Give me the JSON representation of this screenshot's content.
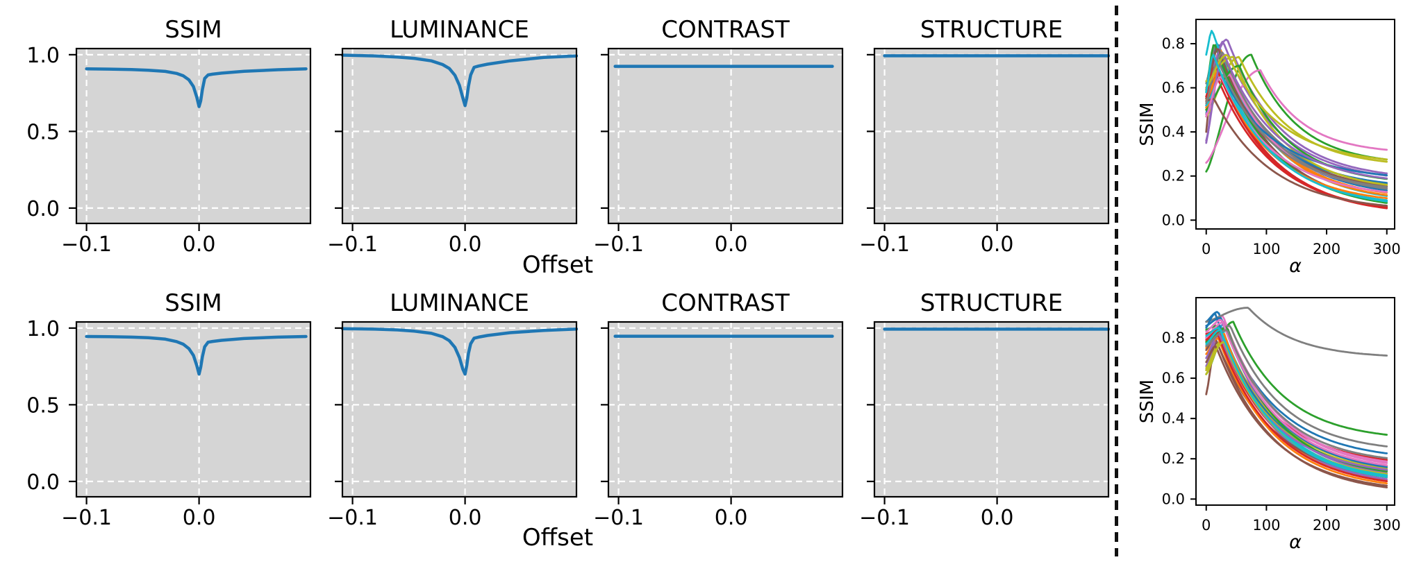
{
  "figure": {
    "offset_label": "Offset",
    "text_color": "#000000",
    "panel_bg": "#d5d5d5",
    "grid_color": "#ffffff",
    "line_blue": "#1f77b4",
    "divider_color": "#111111",
    "palette": [
      "#1f77b4",
      "#ff7f0e",
      "#2ca02c",
      "#d62728",
      "#9467bd",
      "#8c564b",
      "#e377c2",
      "#7f7f7f",
      "#bcbd22",
      "#17becf"
    ]
  },
  "chart_data": [
    {
      "id": "r1-ssim",
      "type": "line",
      "panel": {
        "group": "left",
        "row": 0,
        "col": 0
      },
      "title": "SSIM",
      "grid": true,
      "bg": "panel",
      "show_ytick_labels": true,
      "xlim": [
        -0.109,
        0.099
      ],
      "ylim": [
        -0.1,
        1.04
      ],
      "xticks": [
        -0.1,
        0
      ],
      "xtick_labels": [
        "−0.1",
        "0.0"
      ],
      "yticks": [
        0,
        0.5,
        1
      ],
      "ytick_labels": [
        "0.0",
        "0.5",
        "1.0"
      ],
      "x": [
        -0.1,
        -0.08,
        -0.06,
        -0.045,
        -0.03,
        -0.02,
        -0.014,
        -0.009,
        -0.005,
        -0.002,
        0,
        0.0015,
        0.003,
        0.005,
        0.008,
        0.012,
        0.02,
        0.04,
        0.07,
        0.095
      ],
      "y": [
        0.908,
        0.906,
        0.903,
        0.899,
        0.891,
        0.878,
        0.862,
        0.836,
        0.792,
        0.722,
        0.662,
        0.7,
        0.775,
        0.845,
        0.868,
        0.873,
        0.88,
        0.892,
        0.902,
        0.908
      ]
    },
    {
      "id": "r1-luminance",
      "type": "line",
      "panel": {
        "group": "left",
        "row": 0,
        "col": 1
      },
      "title": "LUMINANCE",
      "grid": true,
      "bg": "panel",
      "show_ytick_labels": false,
      "xlim": [
        -0.109,
        0.099
      ],
      "ylim": [
        -0.1,
        1.04
      ],
      "xticks": [
        -0.1,
        0
      ],
      "xtick_labels": [
        "−0.1",
        "0.0"
      ],
      "yticks": [
        0,
        0.5,
        1
      ],
      "ytick_labels": [
        "0.0",
        "0.5",
        "1.0"
      ],
      "x": [
        -0.109,
        -0.08,
        -0.06,
        -0.045,
        -0.03,
        -0.02,
        -0.014,
        -0.009,
        -0.005,
        -0.002,
        0,
        0.0015,
        0.003,
        0.005,
        0.008,
        0.012,
        0.02,
        0.04,
        0.07,
        0.099
      ],
      "y": [
        0.997,
        0.992,
        0.985,
        0.976,
        0.96,
        0.936,
        0.91,
        0.866,
        0.8,
        0.718,
        0.668,
        0.715,
        0.795,
        0.868,
        0.918,
        0.926,
        0.938,
        0.96,
        0.982,
        0.992
      ]
    },
    {
      "id": "r1-contrast",
      "type": "line",
      "panel": {
        "group": "left",
        "row": 0,
        "col": 2
      },
      "title": "CONTRAST",
      "grid": true,
      "bg": "panel",
      "show_ytick_labels": false,
      "xlim": [
        -0.109,
        0.099
      ],
      "ylim": [
        -0.1,
        1.04
      ],
      "xticks": [
        -0.1,
        0
      ],
      "xtick_labels": [
        "−0.1",
        "0.0"
      ],
      "yticks": [
        0,
        0.5,
        1
      ],
      "ytick_labels": [
        "0.0",
        "0.5",
        "1.0"
      ],
      "x": [
        -0.103,
        0.09
      ],
      "y": [
        0.924,
        0.924
      ]
    },
    {
      "id": "r1-structure",
      "type": "line",
      "panel": {
        "group": "left",
        "row": 0,
        "col": 3
      },
      "title": "STRUCTURE",
      "grid": true,
      "bg": "panel",
      "show_ytick_labels": false,
      "xlim": [
        -0.109,
        0.099
      ],
      "ylim": [
        -0.1,
        1.04
      ],
      "xticks": [
        -0.1,
        0
      ],
      "xtick_labels": [
        "−0.1",
        "0.0"
      ],
      "yticks": [
        0,
        0.5,
        1
      ],
      "ytick_labels": [
        "0.0",
        "0.5",
        "1.0"
      ],
      "x": [
        -0.1,
        0.099
      ],
      "y": [
        0.993,
        0.993
      ]
    },
    {
      "id": "r2-ssim",
      "type": "line",
      "panel": {
        "group": "left",
        "row": 1,
        "col": 0
      },
      "title": "SSIM",
      "grid": true,
      "bg": "panel",
      "show_ytick_labels": true,
      "xlim": [
        -0.109,
        0.099
      ],
      "ylim": [
        -0.1,
        1.04
      ],
      "xticks": [
        -0.1,
        0
      ],
      "xtick_labels": [
        "−0.1",
        "0.0"
      ],
      "yticks": [
        0,
        0.5,
        1
      ],
      "ytick_labels": [
        "0.0",
        "0.5",
        "1.0"
      ],
      "x": [
        -0.1,
        -0.08,
        -0.06,
        -0.045,
        -0.03,
        -0.02,
        -0.014,
        -0.009,
        -0.005,
        -0.002,
        0,
        0.0015,
        0.003,
        0.005,
        0.008,
        0.012,
        0.02,
        0.04,
        0.07,
        0.095
      ],
      "y": [
        0.945,
        0.944,
        0.941,
        0.937,
        0.928,
        0.912,
        0.895,
        0.866,
        0.822,
        0.755,
        0.7,
        0.745,
        0.815,
        0.878,
        0.908,
        0.913,
        0.92,
        0.932,
        0.941,
        0.945
      ]
    },
    {
      "id": "r2-luminance",
      "type": "line",
      "panel": {
        "group": "left",
        "row": 1,
        "col": 1
      },
      "title": "LUMINANCE",
      "grid": true,
      "bg": "panel",
      "show_ytick_labels": false,
      "xlim": [
        -0.109,
        0.099
      ],
      "ylim": [
        -0.1,
        1.04
      ],
      "xticks": [
        -0.1,
        0
      ],
      "xtick_labels": [
        "−0.1",
        "0.0"
      ],
      "yticks": [
        0,
        0.5,
        1
      ],
      "ytick_labels": [
        "0.0",
        "0.5",
        "1.0"
      ],
      "x": [
        -0.109,
        -0.08,
        -0.06,
        -0.045,
        -0.03,
        -0.02,
        -0.014,
        -0.009,
        -0.005,
        -0.002,
        0,
        0.0015,
        0.003,
        0.005,
        0.008,
        0.012,
        0.02,
        0.04,
        0.07,
        0.099
      ],
      "y": [
        0.996,
        0.993,
        0.988,
        0.98,
        0.966,
        0.944,
        0.918,
        0.874,
        0.808,
        0.732,
        0.7,
        0.755,
        0.835,
        0.898,
        0.934,
        0.941,
        0.952,
        0.97,
        0.985,
        0.994
      ]
    },
    {
      "id": "r2-contrast",
      "type": "line",
      "panel": {
        "group": "left",
        "row": 1,
        "col": 2
      },
      "title": "CONTRAST",
      "grid": true,
      "bg": "panel",
      "show_ytick_labels": false,
      "xlim": [
        -0.109,
        0.099
      ],
      "ylim": [
        -0.1,
        1.04
      ],
      "xticks": [
        -0.1,
        0
      ],
      "xtick_labels": [
        "−0.1",
        "0.0"
      ],
      "yticks": [
        0,
        0.5,
        1
      ],
      "ytick_labels": [
        "0.0",
        "0.5",
        "1.0"
      ],
      "x": [
        -0.103,
        0.09
      ],
      "y": [
        0.947,
        0.947
      ]
    },
    {
      "id": "r2-structure",
      "type": "line",
      "panel": {
        "group": "left",
        "row": 1,
        "col": 3
      },
      "title": "STRUCTURE",
      "grid": true,
      "bg": "panel",
      "show_ytick_labels": false,
      "xlim": [
        -0.109,
        0.099
      ],
      "ylim": [
        -0.1,
        1.04
      ],
      "xticks": [
        -0.1,
        0
      ],
      "xtick_labels": [
        "−0.1",
        "0.0"
      ],
      "yticks": [
        0,
        0.5,
        1
      ],
      "ytick_labels": [
        "0.0",
        "0.5",
        "1.0"
      ],
      "x": [
        -0.1,
        0.099
      ],
      "y": [
        0.993,
        0.993
      ]
    },
    {
      "id": "alpha-top",
      "type": "line-family",
      "panel": {
        "group": "right",
        "row": 0
      },
      "grid": false,
      "bg": "white",
      "show_ytick_labels": true,
      "ylabel": "SSIM",
      "xlabel": "α",
      "xlim": [
        -17,
        313
      ],
      "ylim": [
        -0.04,
        0.91
      ],
      "xticks": [
        0,
        100,
        200,
        300
      ],
      "xtick_labels": [
        "0",
        "100",
        "200",
        "300"
      ],
      "yticks": [
        0,
        0.2,
        0.4,
        0.6,
        0.8
      ],
      "ytick_labels": [
        "0.0",
        "0.2",
        "0.4",
        "0.6",
        "0.8"
      ],
      "curves_format": [
        "color_index",
        "y_at_0",
        "peak_alpha",
        "peak_value",
        "y_at_300"
      ],
      "curves": [
        [
          0,
          0.48,
          20,
          0.8,
          0.1
        ],
        [
          1,
          0.51,
          25,
          0.77,
          0.09
        ],
        [
          2,
          0.22,
          75,
          0.75,
          0.25
        ],
        [
          3,
          0.59,
          12,
          0.74,
          0.02
        ],
        [
          4,
          0.35,
          28,
          0.81,
          0.17
        ],
        [
          5,
          0.4,
          15,
          0.79,
          0.12
        ],
        [
          6,
          0.26,
          90,
          0.68,
          0.3
        ],
        [
          7,
          0.62,
          18,
          0.8,
          0.13
        ],
        [
          8,
          0.47,
          55,
          0.74,
          0.24
        ],
        [
          9,
          0.75,
          10,
          0.86,
          0.07
        ],
        [
          0,
          0.55,
          22,
          0.72,
          0.14
        ],
        [
          1,
          0.5,
          30,
          0.75,
          0.08
        ],
        [
          2,
          0.58,
          14,
          0.8,
          0.04
        ],
        [
          3,
          0.52,
          18,
          0.65,
          0.03
        ],
        [
          4,
          0.6,
          35,
          0.82,
          0.18
        ],
        [
          5,
          0.55,
          20,
          0.78,
          0.05
        ],
        [
          6,
          0.48,
          40,
          0.66,
          0.12
        ],
        [
          7,
          0.56,
          28,
          0.76,
          0.11
        ],
        [
          8,
          0.63,
          45,
          0.74,
          0.13
        ],
        [
          9,
          0.52,
          30,
          0.66,
          0.06
        ],
        [
          0,
          0.58,
          25,
          0.66,
          0.18
        ],
        [
          1,
          0.54,
          22,
          0.66,
          0.07
        ],
        [
          2,
          0.5,
          55,
          0.7,
          0.16
        ],
        [
          3,
          0.56,
          16,
          0.7,
          0.02
        ],
        [
          4,
          0.36,
          30,
          0.75,
          0.16
        ],
        [
          5,
          0.54,
          13,
          0.55,
          0.04
        ],
        [
          6,
          0.47,
          25,
          0.65,
          0.1
        ],
        [
          7,
          0.53,
          20,
          0.72,
          0.12
        ],
        [
          8,
          0.6,
          35,
          0.75,
          0.25
        ],
        [
          9,
          0.58,
          12,
          0.75,
          0.05
        ]
      ]
    },
    {
      "id": "alpha-bottom",
      "type": "line-family",
      "panel": {
        "group": "right",
        "row": 1
      },
      "grid": false,
      "bg": "white",
      "show_ytick_labels": true,
      "ylabel": "SSIM",
      "xlabel": "α",
      "xlim": [
        -17,
        313
      ],
      "ylim": [
        -0.03,
        1.0
      ],
      "xticks": [
        0,
        100,
        200,
        300
      ],
      "xtick_labels": [
        "0",
        "100",
        "200",
        "300"
      ],
      "yticks": [
        0,
        0.2,
        0.4,
        0.6,
        0.8
      ],
      "ytick_labels": [
        "0.0",
        "0.2",
        "0.4",
        "0.6",
        "0.8"
      ],
      "curves_format": [
        "color_index",
        "y_at_0",
        "peak_alpha",
        "peak_value",
        "y_at_300"
      ],
      "curves": [
        [
          0,
          0.88,
          20,
          0.93,
          0.19
        ],
        [
          1,
          0.75,
          25,
          0.84,
          0.05
        ],
        [
          2,
          0.62,
          45,
          0.88,
          0.29
        ],
        [
          3,
          0.8,
          22,
          0.85,
          0.16
        ],
        [
          4,
          0.64,
          30,
          0.87,
          0.09
        ],
        [
          5,
          0.52,
          18,
          0.78,
          0.02
        ],
        [
          6,
          0.78,
          28,
          0.91,
          0.14
        ],
        [
          7,
          0.88,
          70,
          0.95,
          0.7
        ],
        [
          8,
          0.62,
          32,
          0.8,
          0.13
        ],
        [
          9,
          0.8,
          25,
          0.86,
          0.08
        ],
        [
          0,
          0.85,
          15,
          0.92,
          0.1
        ],
        [
          1,
          0.76,
          30,
          0.82,
          0.05
        ],
        [
          2,
          0.84,
          18,
          0.86,
          0.11
        ],
        [
          3,
          0.82,
          20,
          0.84,
          0.07
        ],
        [
          4,
          0.66,
          25,
          0.83,
          0.06
        ],
        [
          5,
          0.74,
          15,
          0.8,
          0.08
        ],
        [
          6,
          0.8,
          30,
          0.88,
          0.15
        ],
        [
          7,
          0.78,
          40,
          0.86,
          0.23
        ],
        [
          8,
          0.65,
          28,
          0.79,
          0.12
        ],
        [
          9,
          0.81,
          22,
          0.85,
          0.07
        ],
        [
          0,
          0.86,
          25,
          0.9,
          0.12
        ],
        [
          1,
          0.72,
          20,
          0.8,
          0.04
        ],
        [
          2,
          0.78,
          35,
          0.85,
          0.1
        ],
        [
          3,
          0.79,
          18,
          0.83,
          0.05
        ],
        [
          4,
          0.7,
          22,
          0.82,
          0.11
        ],
        [
          5,
          0.68,
          16,
          0.76,
          0.03
        ],
        [
          6,
          0.83,
          26,
          0.89,
          0.13
        ],
        [
          7,
          0.76,
          35,
          0.84,
          0.17
        ],
        [
          8,
          0.64,
          30,
          0.78,
          0.09
        ],
        [
          9,
          0.77,
          24,
          0.84,
          0.08
        ]
      ]
    }
  ]
}
